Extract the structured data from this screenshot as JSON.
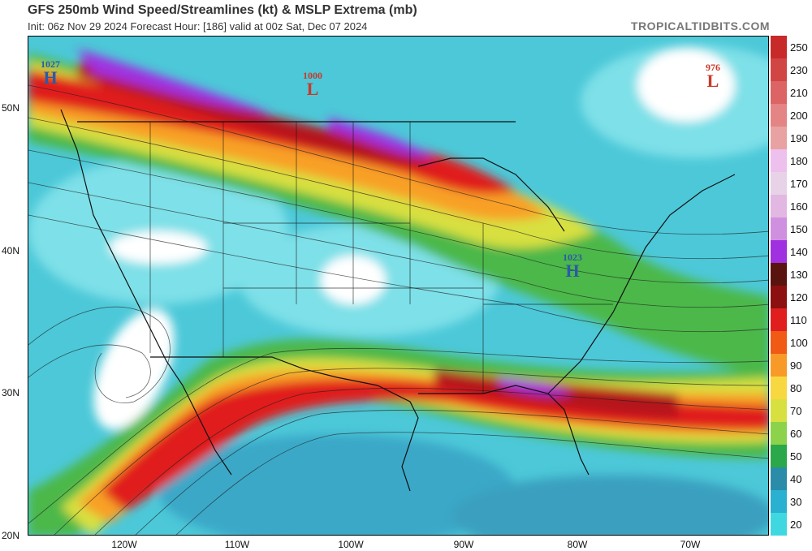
{
  "header": {
    "title": "GFS 250mb Wind Speed/Streamlines (kt) & MSLP Extrema (mb)",
    "subtitle": "Init: 06z Nov 29 2024   Forecast Hour: [186]   valid at 00z Sat, Dec 07 2024",
    "brand": "TROPICALTIDBITS.COM"
  },
  "axes": {
    "lat_labels": [
      "50N",
      "40N",
      "30N",
      "20N"
    ],
    "lon_labels": [
      "120W",
      "110W",
      "100W",
      "90W",
      "80W",
      "70W"
    ]
  },
  "colorbar": {
    "labels": [
      "250",
      "230",
      "210",
      "200",
      "190",
      "180",
      "170",
      "160",
      "150",
      "140",
      "130",
      "120",
      "110",
      "100",
      "90",
      "80",
      "70",
      "60",
      "50",
      "40",
      "30",
      "20"
    ],
    "colors": [
      "#c82a2a",
      "#d24545",
      "#dc6464",
      "#e48484",
      "#e8a2a2",
      "#eec0ee",
      "#e8d2e8",
      "#e2b8e2",
      "#d090e0",
      "#a030e0",
      "#5a1410",
      "#8c1010",
      "#e01e1e",
      "#f05a14",
      "#f89a28",
      "#f8d840",
      "#d8e040",
      "#8cd24a",
      "#2aa84a",
      "#2a8ca8",
      "#2ab0d0",
      "#40d8e0"
    ]
  },
  "pressure_markers": [
    {
      "type": "H",
      "value": "1027",
      "color": "#2a5aa8"
    },
    {
      "type": "L",
      "value": "1000",
      "color": "#c83a2a"
    },
    {
      "type": "L",
      "value": "976",
      "color": "#c83a2a"
    },
    {
      "type": "H",
      "value": "1023",
      "color": "#2a5aa8"
    }
  ]
}
